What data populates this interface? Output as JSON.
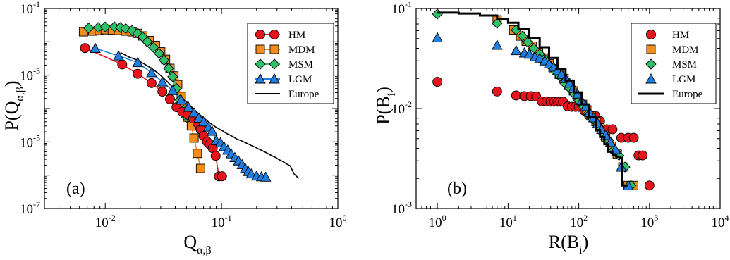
{
  "chart_data": [
    {
      "type": "line",
      "panel_label": "(a)",
      "xlabel": "Q",
      "xlabel_sub": "α,β",
      "ylabel": "P(Q",
      "ylabel_sub": "α,β",
      "ylabel_end": ")",
      "xscale": "log",
      "yscale": "log",
      "xlim": [
        0.003,
        1
      ],
      "ylim": [
        1e-07,
        0.1
      ],
      "xticks": [
        {
          "base": "10",
          "exp": "-2",
          "v": 0.01
        },
        {
          "base": "10",
          "exp": "-1",
          "v": 0.1
        },
        {
          "base": "10",
          "exp": "0",
          "v": 1
        }
      ],
      "yticks": [
        {
          "base": "10",
          "exp": "-1",
          "v": 0.1
        },
        {
          "base": "10",
          "exp": "-3",
          "v": 0.001
        },
        {
          "base": "10",
          "exp": "-5",
          "v": 1e-05
        },
        {
          "base": "10",
          "exp": "-7",
          "v": 1e-07
        }
      ],
      "legend_position": "top-right",
      "series": [
        {
          "name": "HM",
          "color": "#e8141c",
          "marker": "circle",
          "x": [
            0.0067,
            0.014,
            0.019,
            0.025,
            0.031,
            0.036,
            0.041,
            0.046,
            0.051,
            0.057,
            0.062,
            0.066,
            0.07,
            0.075,
            0.079,
            0.084,
            0.089,
            0.095,
            0.101
          ],
          "y": [
            0.0065,
            0.0021,
            0.0011,
            0.00058,
            0.00032,
            0.00019,
            0.00011,
            8e-05,
            6.5e-05,
            5e-05,
            3.7e-05,
            2.4e-05,
            1.5e-05,
            1.02e-05,
            8.5e-06,
            6.5e-06,
            3.8e-06,
            9.2e-07,
            9.3e-07
          ]
        },
        {
          "name": "MDM",
          "color": "#f28c1c",
          "marker": "square",
          "x": [
            0.0065,
            0.0078,
            0.0089,
            0.01,
            0.0115,
            0.013,
            0.015,
            0.017,
            0.019,
            0.021,
            0.024,
            0.027,
            0.03,
            0.033,
            0.036,
            0.039,
            0.042,
            0.045,
            0.048,
            0.051,
            0.055,
            0.058,
            0.062,
            0.066
          ],
          "y": [
            0.02,
            0.021,
            0.022,
            0.023,
            0.0225,
            0.022,
            0.021,
            0.02,
            0.018,
            0.015,
            0.011,
            0.0078,
            0.005,
            0.003,
            0.0016,
            0.00095,
            0.00052,
            0.00023,
            0.00011,
            5.5e-05,
            3e-05,
            1.3e-05,
            4.5e-06,
            1.6e-06
          ]
        },
        {
          "name": "MSM",
          "color": "#2fc06a",
          "marker": "diamond",
          "x": [
            0.0072,
            0.0087,
            0.01,
            0.012,
            0.0135,
            0.015,
            0.017,
            0.019,
            0.021,
            0.023,
            0.026,
            0.029,
            0.032,
            0.035,
            0.038,
            0.041,
            0.044,
            0.047,
            0.05
          ],
          "y": [
            0.026,
            0.027,
            0.028,
            0.0282,
            0.027,
            0.025,
            0.022,
            0.018,
            0.014,
            0.01,
            0.0068,
            0.0045,
            0.0028,
            0.0016,
            0.0009,
            0.0004,
            0.00018,
            9e-05,
            5.5e-05
          ]
        },
        {
          "name": "LGM",
          "color": "#1f7ee0",
          "marker": "triangle",
          "x": [
            0.0082,
            0.013,
            0.019,
            0.025,
            0.031,
            0.038,
            0.045,
            0.052,
            0.058,
            0.064,
            0.07,
            0.077,
            0.083,
            0.09,
            0.098,
            0.105,
            0.113,
            0.121,
            0.13,
            0.14,
            0.15,
            0.16,
            0.17,
            0.18,
            0.2,
            0.22,
            0.24
          ],
          "y": [
            0.0064,
            0.0038,
            0.0024,
            0.0012,
            0.00063,
            0.00035,
            0.00018,
            0.00011,
            7.5e-05,
            5.2e-05,
            4e-05,
            2.8e-05,
            2.1e-05,
            1.1e-05,
            9.5e-06,
            7.2e-06,
            5.7e-06,
            4.4e-06,
            3.4e-06,
            2.7e-06,
            2.1e-06,
            1.6e-06,
            1.3e-06,
            1.1e-06,
            9.5e-07,
            9e-07,
            8.8e-07
          ]
        },
        {
          "name": "Europe",
          "color": "#000000",
          "marker": "none",
          "x": [
            0.0135,
            0.016,
            0.019,
            0.022,
            0.025,
            0.028,
            0.031,
            0.034,
            0.037,
            0.04,
            0.043,
            0.046,
            0.05,
            0.054,
            0.058,
            0.062,
            0.067,
            0.072,
            0.077,
            0.083,
            0.089,
            0.096,
            0.103,
            0.11,
            0.118,
            0.127,
            0.136,
            0.146,
            0.157,
            0.168,
            0.18,
            0.193,
            0.207,
            0.222,
            0.238,
            0.255,
            0.273,
            0.292,
            0.313,
            0.335,
            0.36,
            0.39,
            0.42,
            0.46
          ],
          "y": [
            0.0048,
            0.0035,
            0.0028,
            0.0021,
            0.0016,
            0.0012,
            0.00088,
            0.00065,
            0.00048,
            0.00036,
            0.00027,
            0.00021,
            0.00016,
            0.00012,
            9.5e-05,
            7.5e-05,
            6e-05,
            4.9e-05,
            4e-05,
            3.3e-05,
            2.8e-05,
            2.4e-05,
            2.1e-05,
            1.8e-05,
            1.6e-05,
            1.4e-05,
            1.2e-05,
            1.1e-05,
            9.8e-06,
            8.8e-06,
            7.8e-06,
            7e-06,
            6.2e-06,
            5.5e-06,
            4.9e-06,
            4.3e-06,
            3.8e-06,
            3.4e-06,
            2.9e-06,
            2.6e-06,
            2.2e-06,
            1.9e-06,
            1.1e-06,
            8e-07
          ]
        }
      ]
    },
    {
      "type": "scatter",
      "panel_label": "(b)",
      "xlabel": "R(B",
      "xlabel_sub": "i",
      "xlabel_end": ")",
      "ylabel": "P(B",
      "ylabel_sub": "i",
      "ylabel_end": ")",
      "xscale": "log",
      "yscale": "log",
      "xlim": [
        0.5,
        10000
      ],
      "ylim": [
        0.001,
        0.1
      ],
      "xticks": [
        {
          "base": "10",
          "exp": "0",
          "v": 1
        },
        {
          "base": "10",
          "exp": "1",
          "v": 10
        },
        {
          "base": "10",
          "exp": "2",
          "v": 100
        },
        {
          "base": "10",
          "exp": "3",
          "v": 1000
        },
        {
          "base": "10",
          "exp": "4",
          "v": 10000
        }
      ],
      "yticks": [
        {
          "base": "10",
          "exp": "-1",
          "v": 0.1
        },
        {
          "base": "10",
          "exp": "-2",
          "v": 0.01
        },
        {
          "base": "10",
          "exp": "-3",
          "v": 0.001
        }
      ],
      "legend_position": "top-right",
      "series": [
        {
          "name": "HM",
          "color": "#e8141c",
          "marker": "circle",
          "x": [
            1,
            7,
            13,
            17,
            21,
            25,
            30,
            35,
            40,
            45,
            50,
            55,
            60,
            70,
            80,
            90,
            100,
            120,
            140,
            170,
            200,
            250,
            300,
            400,
            500,
            600,
            700,
            800,
            1000
          ],
          "y": [
            0.0185,
            0.0148,
            0.0135,
            0.0133,
            0.0133,
            0.0132,
            0.0118,
            0.0118,
            0.0117,
            0.0117,
            0.0117,
            0.0117,
            0.0117,
            0.0105,
            0.0104,
            0.0104,
            0.0104,
            0.0095,
            0.0085,
            0.0085,
            0.0075,
            0.0062,
            0.0062,
            0.0051,
            0.0051,
            0.0051,
            0.0034,
            0.0034,
            0.0017
          ]
        },
        {
          "name": "MDM",
          "color": "#f28c1c",
          "marker": "square",
          "x": [
            7,
            12,
            15,
            18,
            22,
            27,
            32,
            38,
            45,
            53,
            62,
            72,
            84,
            98,
            113,
            130,
            150,
            175,
            200,
            240,
            290,
            350,
            420,
            500,
            600
          ],
          "y": [
            0.077,
            0.061,
            0.053,
            0.047,
            0.042,
            0.036,
            0.032,
            0.028,
            0.025,
            0.022,
            0.02,
            0.017,
            0.015,
            0.013,
            0.011,
            0.0097,
            0.0084,
            0.0074,
            0.0064,
            0.0052,
            0.0042,
            0.0035,
            0.0026,
            0.0017,
            0.0017
          ]
        },
        {
          "name": "MSM",
          "color": "#2fc06a",
          "marker": "diamond",
          "x": [
            1,
            7,
            13,
            16,
            19,
            23,
            28,
            33,
            39,
            46,
            54,
            63,
            74,
            86,
            100,
            117,
            137,
            160,
            190,
            225,
            265,
            310,
            370,
            450,
            550
          ],
          "y": [
            0.088,
            0.071,
            0.061,
            0.053,
            0.046,
            0.04,
            0.035,
            0.031,
            0.027,
            0.024,
            0.021,
            0.018,
            0.016,
            0.014,
            0.012,
            0.0105,
            0.0089,
            0.0078,
            0.0066,
            0.0055,
            0.0048,
            0.0038,
            0.0034,
            0.0026,
            0.0017
          ]
        },
        {
          "name": "LGM",
          "color": "#1f7ee0",
          "marker": "triangle",
          "x": [
            1,
            7,
            13,
            17,
            20,
            24,
            28,
            33,
            38,
            44,
            50,
            57,
            65,
            74,
            84,
            96,
            110,
            125,
            142,
            162,
            185,
            210,
            240,
            280,
            330,
            400,
            500
          ],
          "y": [
            0.051,
            0.043,
            0.038,
            0.036,
            0.035,
            0.033,
            0.032,
            0.03,
            0.028,
            0.026,
            0.024,
            0.022,
            0.02,
            0.018,
            0.016,
            0.014,
            0.012,
            0.0105,
            0.0092,
            0.0081,
            0.0071,
            0.0062,
            0.0054,
            0.0046,
            0.0039,
            0.0026,
            0.0017
          ]
        },
        {
          "name": "Europe",
          "color": "#000000",
          "marker": "none",
          "x": [
            1,
            2,
            4,
            7,
            10,
            14,
            20,
            28,
            38,
            50,
            65,
            85,
            110,
            140,
            175,
            200,
            230,
            260,
            300,
            340,
            380,
            410,
            450,
            500
          ],
          "y": [
            0.091,
            0.089,
            0.085,
            0.079,
            0.072,
            0.062,
            0.051,
            0.041,
            0.032,
            0.025,
            0.019,
            0.0145,
            0.011,
            0.0082,
            0.0061,
            0.0052,
            0.0044,
            0.0037,
            0.0034,
            0.0033,
            0.0032,
            0.0017,
            0.0017,
            0.0017
          ]
        }
      ]
    }
  ]
}
